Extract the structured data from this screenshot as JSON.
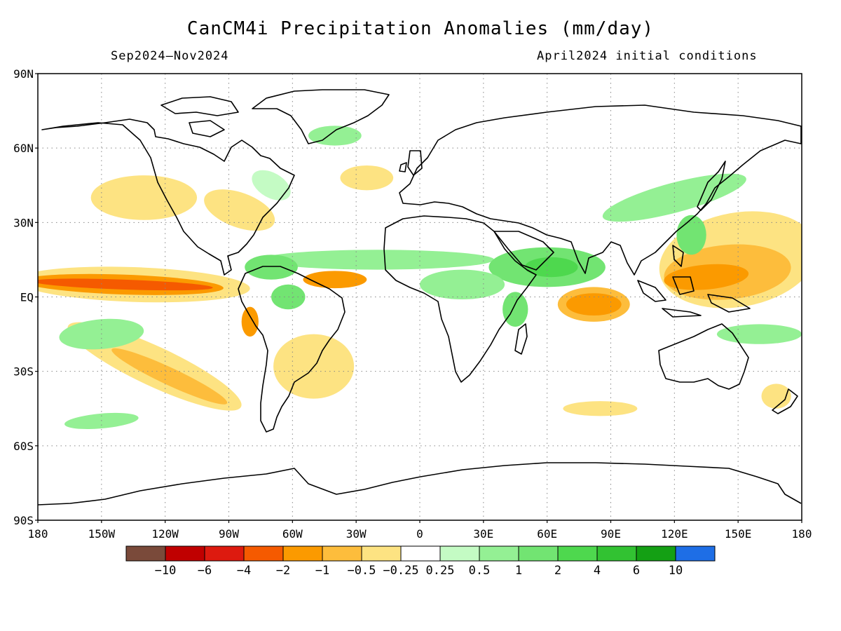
{
  "title": "CanCM4i Precipitation Anomalies (mm/day)",
  "period": "Sep2024–Nov2024",
  "init": "April2024 initial conditions",
  "lat_ticks": [
    "90N",
    "60N",
    "30N",
    "EQ",
    "30S",
    "60S",
    "90S"
  ],
  "lon_ticks": [
    "180",
    "150W",
    "120W",
    "90W",
    "60W",
    "30W",
    "0",
    "30E",
    "60E",
    "90E",
    "120E",
    "150E",
    "180"
  ],
  "grid_lines": "dotted",
  "colorbar": {
    "colors": [
      "#7a4a3a",
      "#c00000",
      "#dd1a0f",
      "#f55a00",
      "#fb9a00",
      "#fdbd3c",
      "#fde382",
      "#ffffff",
      "#c4fbc4",
      "#94f094",
      "#72e472",
      "#4ed84e",
      "#32c232",
      "#14a014",
      "#1e6ee6"
    ],
    "labels": [
      "−10",
      "−6",
      "−4",
      "−2",
      "−1",
      "−0.5",
      "−0.25",
      "0.25",
      "0.5",
      "1",
      "2",
      "4",
      "6",
      "10"
    ]
  },
  "anomaly_regions": [
    {
      "lon": -140,
      "lat": 5,
      "w": 85,
      "h": 4,
      "rot": 2,
      "level": "-4"
    },
    {
      "lon": -140,
      "lat": 5,
      "w": 95,
      "h": 8,
      "rot": 2,
      "level": "-2"
    },
    {
      "lon": -135,
      "lat": 5,
      "w": 110,
      "h": 14,
      "rot": 2,
      "level": "-0.5"
    },
    {
      "lon": -40,
      "lat": 7,
      "w": 30,
      "h": 7,
      "rot": 0,
      "level": "-2"
    },
    {
      "lon": -118,
      "lat": -32,
      "w": 60,
      "h": 7,
      "rot": 25,
      "level": "-1"
    },
    {
      "lon": -125,
      "lat": -28,
      "w": 90,
      "h": 16,
      "rot": 25,
      "level": "-0.5"
    },
    {
      "lon": -50,
      "lat": -28,
      "w": 38,
      "h": 26,
      "rot": 0,
      "level": "-0.5"
    },
    {
      "lon": -80,
      "lat": -10,
      "w": 8,
      "h": 12,
      "rot": 0,
      "level": "-2"
    },
    {
      "lon": -130,
      "lat": 40,
      "w": 50,
      "h": 18,
      "rot": 0,
      "level": "-0.25"
    },
    {
      "lon": 82,
      "lat": -3,
      "w": 26,
      "h": 9,
      "rot": 0,
      "level": "-2"
    },
    {
      "lon": 82,
      "lat": -3,
      "w": 34,
      "h": 14,
      "rot": 0,
      "level": "-1"
    },
    {
      "lon": 135,
      "lat": 8,
      "w": 40,
      "h": 10,
      "rot": -5,
      "level": "-2"
    },
    {
      "lon": 145,
      "lat": 10,
      "w": 60,
      "h": 22,
      "rot": -5,
      "level": "-1"
    },
    {
      "lon": 150,
      "lat": 15,
      "w": 75,
      "h": 38,
      "rot": -10,
      "level": "-0.5"
    },
    {
      "lon": 85,
      "lat": -45,
      "w": 35,
      "h": 6,
      "rot": 0,
      "level": "-0.25"
    },
    {
      "lon": 168,
      "lat": -40,
      "w": 14,
      "h": 10,
      "rot": 0,
      "level": "-0.5"
    },
    {
      "lon": -25,
      "lat": 48,
      "w": 25,
      "h": 10,
      "rot": 0,
      "level": "-0.25"
    },
    {
      "lon": -85,
      "lat": 35,
      "w": 35,
      "h": 14,
      "rot": 20,
      "level": "-0.5"
    },
    {
      "lon": -20,
      "lat": 15,
      "w": 110,
      "h": 8,
      "rot": 0,
      "level": "0.5"
    },
    {
      "lon": 60,
      "lat": 12,
      "w": 55,
      "h": 16,
      "rot": 0,
      "level": "1"
    },
    {
      "lon": 62,
      "lat": 12,
      "w": 25,
      "h": 8,
      "rot": 0,
      "level": "2"
    },
    {
      "lon": 20,
      "lat": 5,
      "w": 40,
      "h": 12,
      "rot": 0,
      "level": "0.5"
    },
    {
      "lon": 45,
      "lat": -5,
      "w": 12,
      "h": 14,
      "rot": 0,
      "level": "1"
    },
    {
      "lon": -150,
      "lat": -15,
      "w": 40,
      "h": 12,
      "rot": -5,
      "level": "0.5"
    },
    {
      "lon": 160,
      "lat": -15,
      "w": 40,
      "h": 8,
      "rot": 0,
      "level": "0.5"
    },
    {
      "lon": -150,
      "lat": -50,
      "w": 35,
      "h": 6,
      "rot": -5,
      "level": "0.5"
    },
    {
      "lon": 120,
      "lat": 40,
      "w": 70,
      "h": 12,
      "rot": -15,
      "level": "0.5"
    },
    {
      "lon": 128,
      "lat": 25,
      "w": 14,
      "h": 16,
      "rot": 0,
      "level": "1"
    },
    {
      "lon": -70,
      "lat": 12,
      "w": 25,
      "h": 10,
      "rot": 0,
      "level": "1"
    },
    {
      "lon": -62,
      "lat": 0,
      "w": 16,
      "h": 10,
      "rot": 0,
      "level": "1"
    },
    {
      "lon": -40,
      "lat": 65,
      "w": 25,
      "h": 8,
      "rot": 0,
      "level": "0.5"
    },
    {
      "lon": -70,
      "lat": 45,
      "w": 20,
      "h": 10,
      "rot": 30,
      "level": "0.25"
    }
  ]
}
